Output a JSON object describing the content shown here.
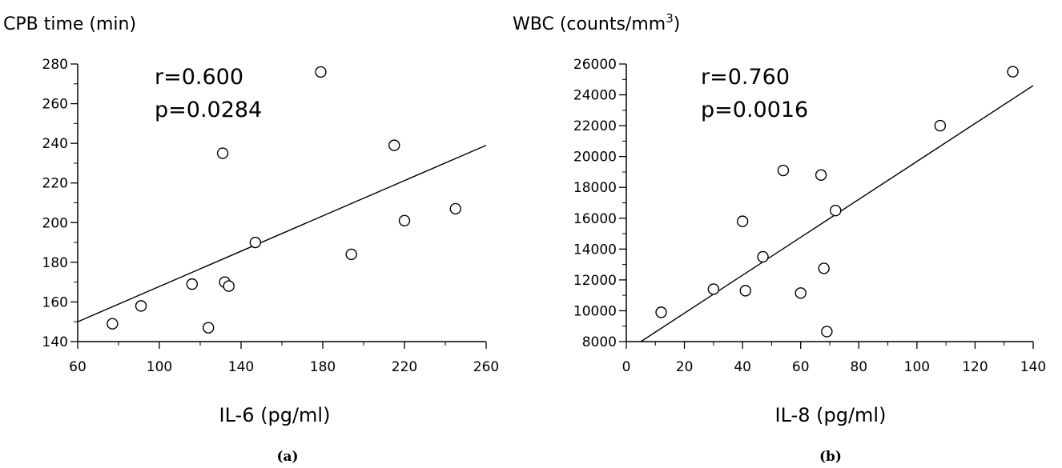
{
  "chart_data": [
    {
      "type": "scatter",
      "panel": "(a)",
      "ylabel": "CPB time (min)",
      "xlabel": "IL-6 (pg/ml)",
      "annotations": [
        "r=0.600",
        "p=0.0284"
      ],
      "xlim": [
        60,
        260
      ],
      "ylim": [
        140,
        280
      ],
      "xticks": [
        60,
        100,
        140,
        180,
        220,
        260
      ],
      "yticks": [
        140,
        160,
        180,
        200,
        220,
        240,
        260,
        280
      ],
      "points": [
        {
          "x": 77,
          "y": 149
        },
        {
          "x": 91,
          "y": 158
        },
        {
          "x": 116,
          "y": 169
        },
        {
          "x": 124,
          "y": 147
        },
        {
          "x": 131,
          "y": 235
        },
        {
          "x": 132,
          "y": 170
        },
        {
          "x": 134,
          "y": 168
        },
        {
          "x": 147,
          "y": 190
        },
        {
          "x": 179,
          "y": 276
        },
        {
          "x": 194,
          "y": 184
        },
        {
          "x": 215,
          "y": 239
        },
        {
          "x": 220,
          "y": 201
        },
        {
          "x": 245,
          "y": 207
        }
      ],
      "fit_line": {
        "x": [
          60,
          260
        ],
        "y": [
          150,
          239
        ]
      },
      "grid": false
    },
    {
      "type": "scatter",
      "panel": "(b)",
      "ylabel": "WBC (counts/mm",
      "ylabel_sup": "3",
      "ylabel_end": ")",
      "xlabel": "IL-8 (pg/ml)",
      "annotations": [
        "r=0.760",
        "p=0.0016"
      ],
      "xlim": [
        0,
        140
      ],
      "ylim": [
        8000,
        26000
      ],
      "xticks": [
        0,
        20,
        40,
        60,
        80,
        100,
        120,
        140
      ],
      "yticks": [
        8000,
        10000,
        12000,
        14000,
        16000,
        18000,
        20000,
        22000,
        24000,
        26000
      ],
      "points": [
        {
          "x": 12,
          "y": 9900
        },
        {
          "x": 30,
          "y": 11400
        },
        {
          "x": 40,
          "y": 15800
        },
        {
          "x": 41,
          "y": 11300
        },
        {
          "x": 47,
          "y": 13500
        },
        {
          "x": 54,
          "y": 19100
        },
        {
          "x": 60,
          "y": 11150
        },
        {
          "x": 67,
          "y": 18800
        },
        {
          "x": 68,
          "y": 12750
        },
        {
          "x": 69,
          "y": 8650
        },
        {
          "x": 72,
          "y": 16500
        },
        {
          "x": 108,
          "y": 22000
        },
        {
          "x": 133,
          "y": 25500
        }
      ],
      "fit_line": {
        "x": [
          5,
          140
        ],
        "y": [
          8000,
          24600
        ]
      },
      "grid": false
    }
  ]
}
